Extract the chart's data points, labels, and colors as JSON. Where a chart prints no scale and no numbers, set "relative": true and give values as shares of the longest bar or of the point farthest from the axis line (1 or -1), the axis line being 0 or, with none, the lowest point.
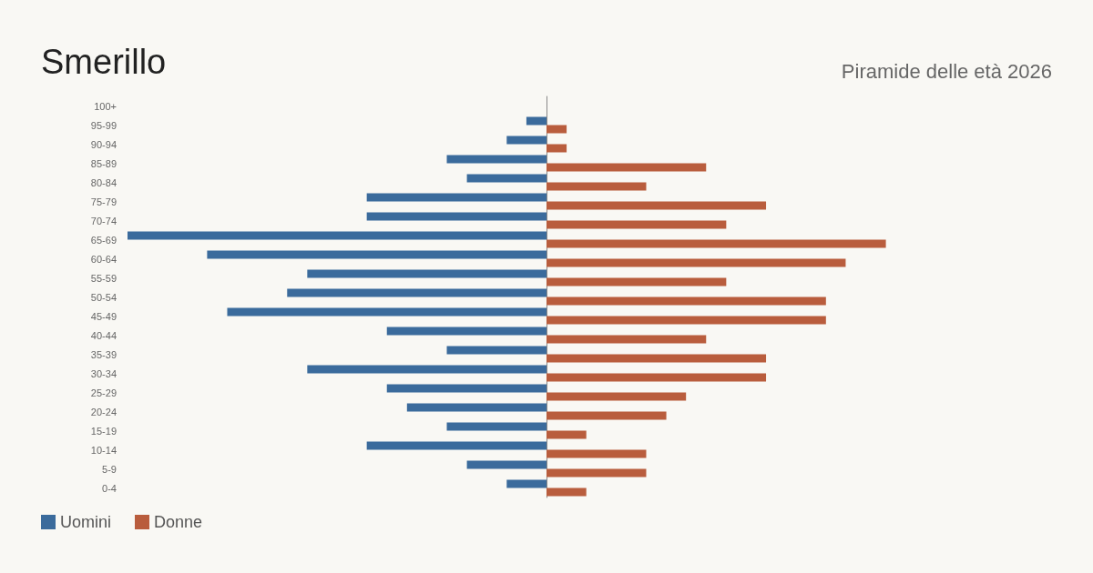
{
  "chart_data": {
    "type": "bar",
    "title": "Smerillo",
    "subtitle": "Piramide delle età 2026",
    "orientation": "horizontal",
    "relative": true,
    "legend": "bottom left",
    "categories": [
      "100+",
      "95-99",
      "90-94",
      "85-89",
      "80-84",
      "75-79",
      "70-74",
      "65-69",
      "60-64",
      "55-59",
      "50-54",
      "45-49",
      "40-44",
      "35-39",
      "30-34",
      "25-29",
      "20-24",
      "15-19",
      "10-14",
      "5-9",
      "0-4"
    ],
    "series": [
      {
        "name": "Uomini",
        "color": "#3b6b9c",
        "values": [
          0,
          -0.048,
          -0.095,
          -0.238,
          -0.19,
          -0.429,
          -0.429,
          -1,
          -0.81,
          -0.571,
          -0.619,
          -0.762,
          -0.381,
          -0.238,
          -0.571,
          -0.381,
          -0.333,
          -0.238,
          -0.429,
          -0.19,
          -0.095
        ]
      },
      {
        "name": "Donne",
        "color": "#b95d3d",
        "values": [
          0,
          0.048,
          0.048,
          0.381,
          0.238,
          0.524,
          0.429,
          0.81,
          0.714,
          0.429,
          0.667,
          0.667,
          0.381,
          0.524,
          0.524,
          0.333,
          0.286,
          0.095,
          0.238,
          0.238,
          0.095
        ]
      }
    ]
  }
}
